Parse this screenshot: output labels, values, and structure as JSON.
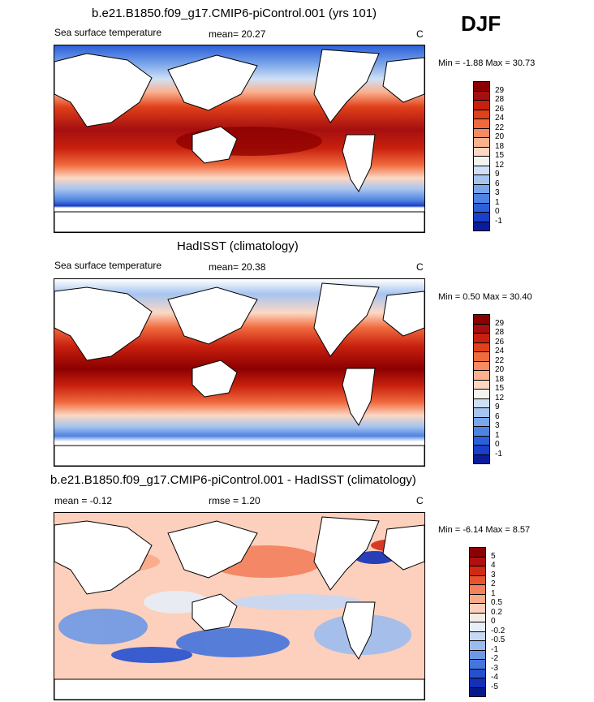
{
  "season": "DJF",
  "panels": [
    {
      "title": "b.e21.B1850.f09_g17.CMIP6-piControl.001 (yrs 101)",
      "left_label": "Sea surface temperature",
      "center_label": "mean=  20.27",
      "units": "C",
      "minmax": "Min =  -1.88 Max =  30.73",
      "colorbar": {
        "labels": [
          "29",
          "28",
          "26",
          "24",
          "22",
          "20",
          "18",
          "15",
          "12",
          "9",
          "6",
          "3",
          "1",
          "0",
          "-1"
        ],
        "colors": [
          "#8b0000",
          "#a50f0f",
          "#c8200e",
          "#e0401a",
          "#f06a3e",
          "#f88a62",
          "#fbb08e",
          "#fcd8c4",
          "#f4f4ee",
          "#cfe0f6",
          "#a6c4f0",
          "#7aa6ea",
          "#4f83e2",
          "#2c5fd8",
          "#1a3fc8",
          "#0a1c9c"
        ]
      }
    },
    {
      "title": "HadISST (climatology)",
      "left_label": "Sea surface temperature",
      "center_label": "mean=  20.38",
      "units": "C",
      "minmax": "Min =   0.50 Max =  30.40",
      "colorbar": {
        "labels": [
          "29",
          "28",
          "26",
          "24",
          "22",
          "20",
          "18",
          "15",
          "12",
          "9",
          "6",
          "3",
          "1",
          "0",
          "-1"
        ],
        "colors": [
          "#8b0000",
          "#a50f0f",
          "#c8200e",
          "#e0401a",
          "#f06a3e",
          "#f88a62",
          "#fbb08e",
          "#fcd8c4",
          "#f4f4ee",
          "#cfe0f6",
          "#a6c4f0",
          "#7aa6ea",
          "#4f83e2",
          "#2c5fd8",
          "#1a3fc8",
          "#0a1c9c"
        ]
      }
    },
    {
      "title": "b.e21.B1850.f09_g17.CMIP6-piControl.001 - HadISST (climatology)",
      "left_label": "mean =  -0.12",
      "center_label": "rmse =   1.20",
      "units": "C",
      "minmax": "Min =  -6.14 Max =   8.57",
      "colorbar": {
        "labels": [
          "5",
          "4",
          "3",
          "2",
          "1",
          "0.5",
          "0.2",
          "0",
          "-0.2",
          "-0.5",
          "-1",
          "-2",
          "-3",
          "-4",
          "-5"
        ],
        "colors": [
          "#8b0000",
          "#b01010",
          "#d02a14",
          "#e8532e",
          "#f4805c",
          "#f9aa88",
          "#fcd0bc",
          "#f6ece6",
          "#e8eef8",
          "#c6d8f4",
          "#9cbcee",
          "#6e98e6",
          "#4474dc",
          "#2450d0",
          "#1230b8",
          "#061a8e"
        ]
      }
    }
  ]
}
